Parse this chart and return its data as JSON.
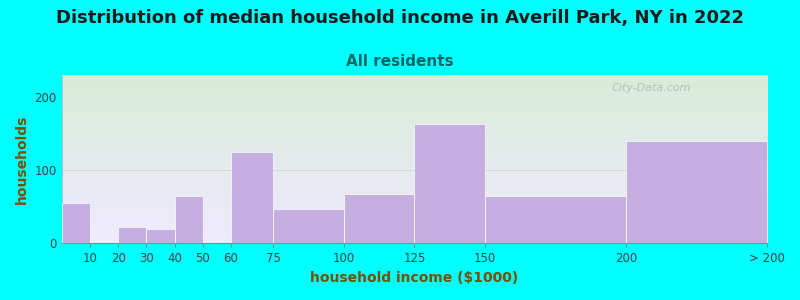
{
  "title": "Distribution of median household income in Averill Park, NY in 2022",
  "subtitle": "All residents",
  "xlabel": "household income ($1000)",
  "ylabel": "households",
  "background_color": "#00FFFF",
  "bar_color": "#c5aee0",
  "title_fontsize": 13,
  "subtitle_fontsize": 11,
  "axis_label_fontsize": 10,
  "watermark_text": "City-Data.com",
  "bin_edges": [
    0,
    10,
    20,
    30,
    40,
    50,
    60,
    75,
    100,
    125,
    150,
    200,
    250
  ],
  "bin_labels": [
    "10",
    "20",
    "30",
    "40",
    "50",
    "60",
    "75",
    "100",
    "125",
    "150",
    "200",
    "> 200"
  ],
  "values": [
    55,
    0,
    22,
    20,
    65,
    0,
    125,
    47,
    68,
    163,
    65,
    140
  ],
  "ylim": [
    0,
    230
  ],
  "yticks": [
    0,
    100,
    200
  ],
  "plot_gradient_top": "#d8edd8",
  "plot_gradient_bottom": "#f0eaff"
}
